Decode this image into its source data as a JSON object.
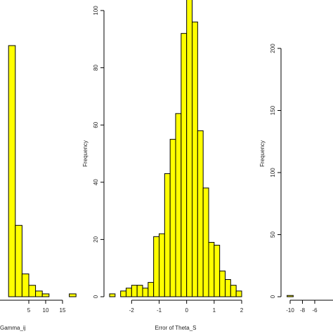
{
  "chart_data": [
    {
      "type": "bar",
      "panel": "left",
      "xlabel": "Gamma_ij",
      "ylabel": "",
      "xticks": [
        5,
        10,
        15
      ],
      "x_labels": [
        "5",
        "10",
        "15"
      ],
      "bin_width": 2,
      "bars": [
        {
          "start": -1,
          "end": 1,
          "value": 88
        },
        {
          "start": 1,
          "end": 3,
          "value": 25
        },
        {
          "start": 3,
          "end": 5,
          "value": 8
        },
        {
          "start": 5,
          "end": 7,
          "value": 4
        },
        {
          "start": 7,
          "end": 9,
          "value": 2
        },
        {
          "start": 9,
          "end": 11,
          "value": 1
        },
        {
          "start": 11,
          "end": 13,
          "value": 0
        },
        {
          "start": 13,
          "end": 15,
          "value": 0
        },
        {
          "start": 15,
          "end": 17,
          "value": 0
        },
        {
          "start": 17,
          "end": 19,
          "value": 1
        }
      ],
      "color": "#ffff00"
    },
    {
      "type": "bar",
      "panel": "middle",
      "xlabel": "Error of Theta_S",
      "ylabel": "Frequency",
      "yticks": [
        0,
        20,
        40,
        60,
        80,
        100
      ],
      "y_labels": [
        "0",
        "20",
        "40",
        "60",
        "80",
        "100"
      ],
      "xticks": [
        -2,
        -1,
        0,
        1,
        2
      ],
      "x_labels": [
        "-2",
        "-1",
        "0",
        "1",
        "2"
      ],
      "ylim": [
        0,
        105
      ],
      "xlim": [
        -2.8,
        2.0
      ],
      "bin_width": 0.2,
      "bars": [
        {
          "start": -2.8,
          "end": -2.6,
          "value": 1
        },
        {
          "start": -2.6,
          "end": -2.4,
          "value": 0
        },
        {
          "start": -2.4,
          "end": -2.2,
          "value": 2
        },
        {
          "start": -2.2,
          "end": -2.0,
          "value": 3
        },
        {
          "start": -2.0,
          "end": -1.8,
          "value": 4
        },
        {
          "start": -1.8,
          "end": -1.6,
          "value": 4
        },
        {
          "start": -1.6,
          "end": -1.4,
          "value": 3
        },
        {
          "start": -1.4,
          "end": -1.2,
          "value": 5
        },
        {
          "start": -1.2,
          "end": -1.0,
          "value": 21
        },
        {
          "start": -1.0,
          "end": -0.8,
          "value": 22
        },
        {
          "start": -0.8,
          "end": -0.6,
          "value": 43
        },
        {
          "start": -0.6,
          "end": -0.4,
          "value": 55
        },
        {
          "start": -0.4,
          "end": -0.2,
          "value": 64
        },
        {
          "start": -0.2,
          "end": 0.0,
          "value": 92
        },
        {
          "start": 0.0,
          "end": 0.2,
          "value": 105
        },
        {
          "start": 0.2,
          "end": 0.4,
          "value": 96
        },
        {
          "start": 0.4,
          "end": 0.6,
          "value": 58
        },
        {
          "start": 0.6,
          "end": 0.8,
          "value": 38
        },
        {
          "start": 0.8,
          "end": 1.0,
          "value": 19
        },
        {
          "start": 1.0,
          "end": 1.2,
          "value": 18
        },
        {
          "start": 1.2,
          "end": 1.4,
          "value": 9
        },
        {
          "start": 1.4,
          "end": 1.6,
          "value": 6
        },
        {
          "start": 1.6,
          "end": 1.8,
          "value": 4
        },
        {
          "start": 1.8,
          "end": 2.0,
          "value": 2
        }
      ],
      "color": "#ffff00"
    },
    {
      "type": "bar",
      "panel": "right",
      "xlabel": "",
      "ylabel": "Frequency",
      "yticks": [
        0,
        50,
        100,
        150,
        200
      ],
      "y_labels": [
        "0",
        "50",
        "100",
        "150",
        "200"
      ],
      "xticks": [
        -10,
        -8,
        -6
      ],
      "x_labels": [
        "-10",
        "-8",
        "-6"
      ],
      "ylim": [
        0,
        200
      ],
      "bars": [
        {
          "start": -10.5,
          "end": -9.5,
          "value": 1
        }
      ],
      "color": "#ffff00"
    }
  ]
}
